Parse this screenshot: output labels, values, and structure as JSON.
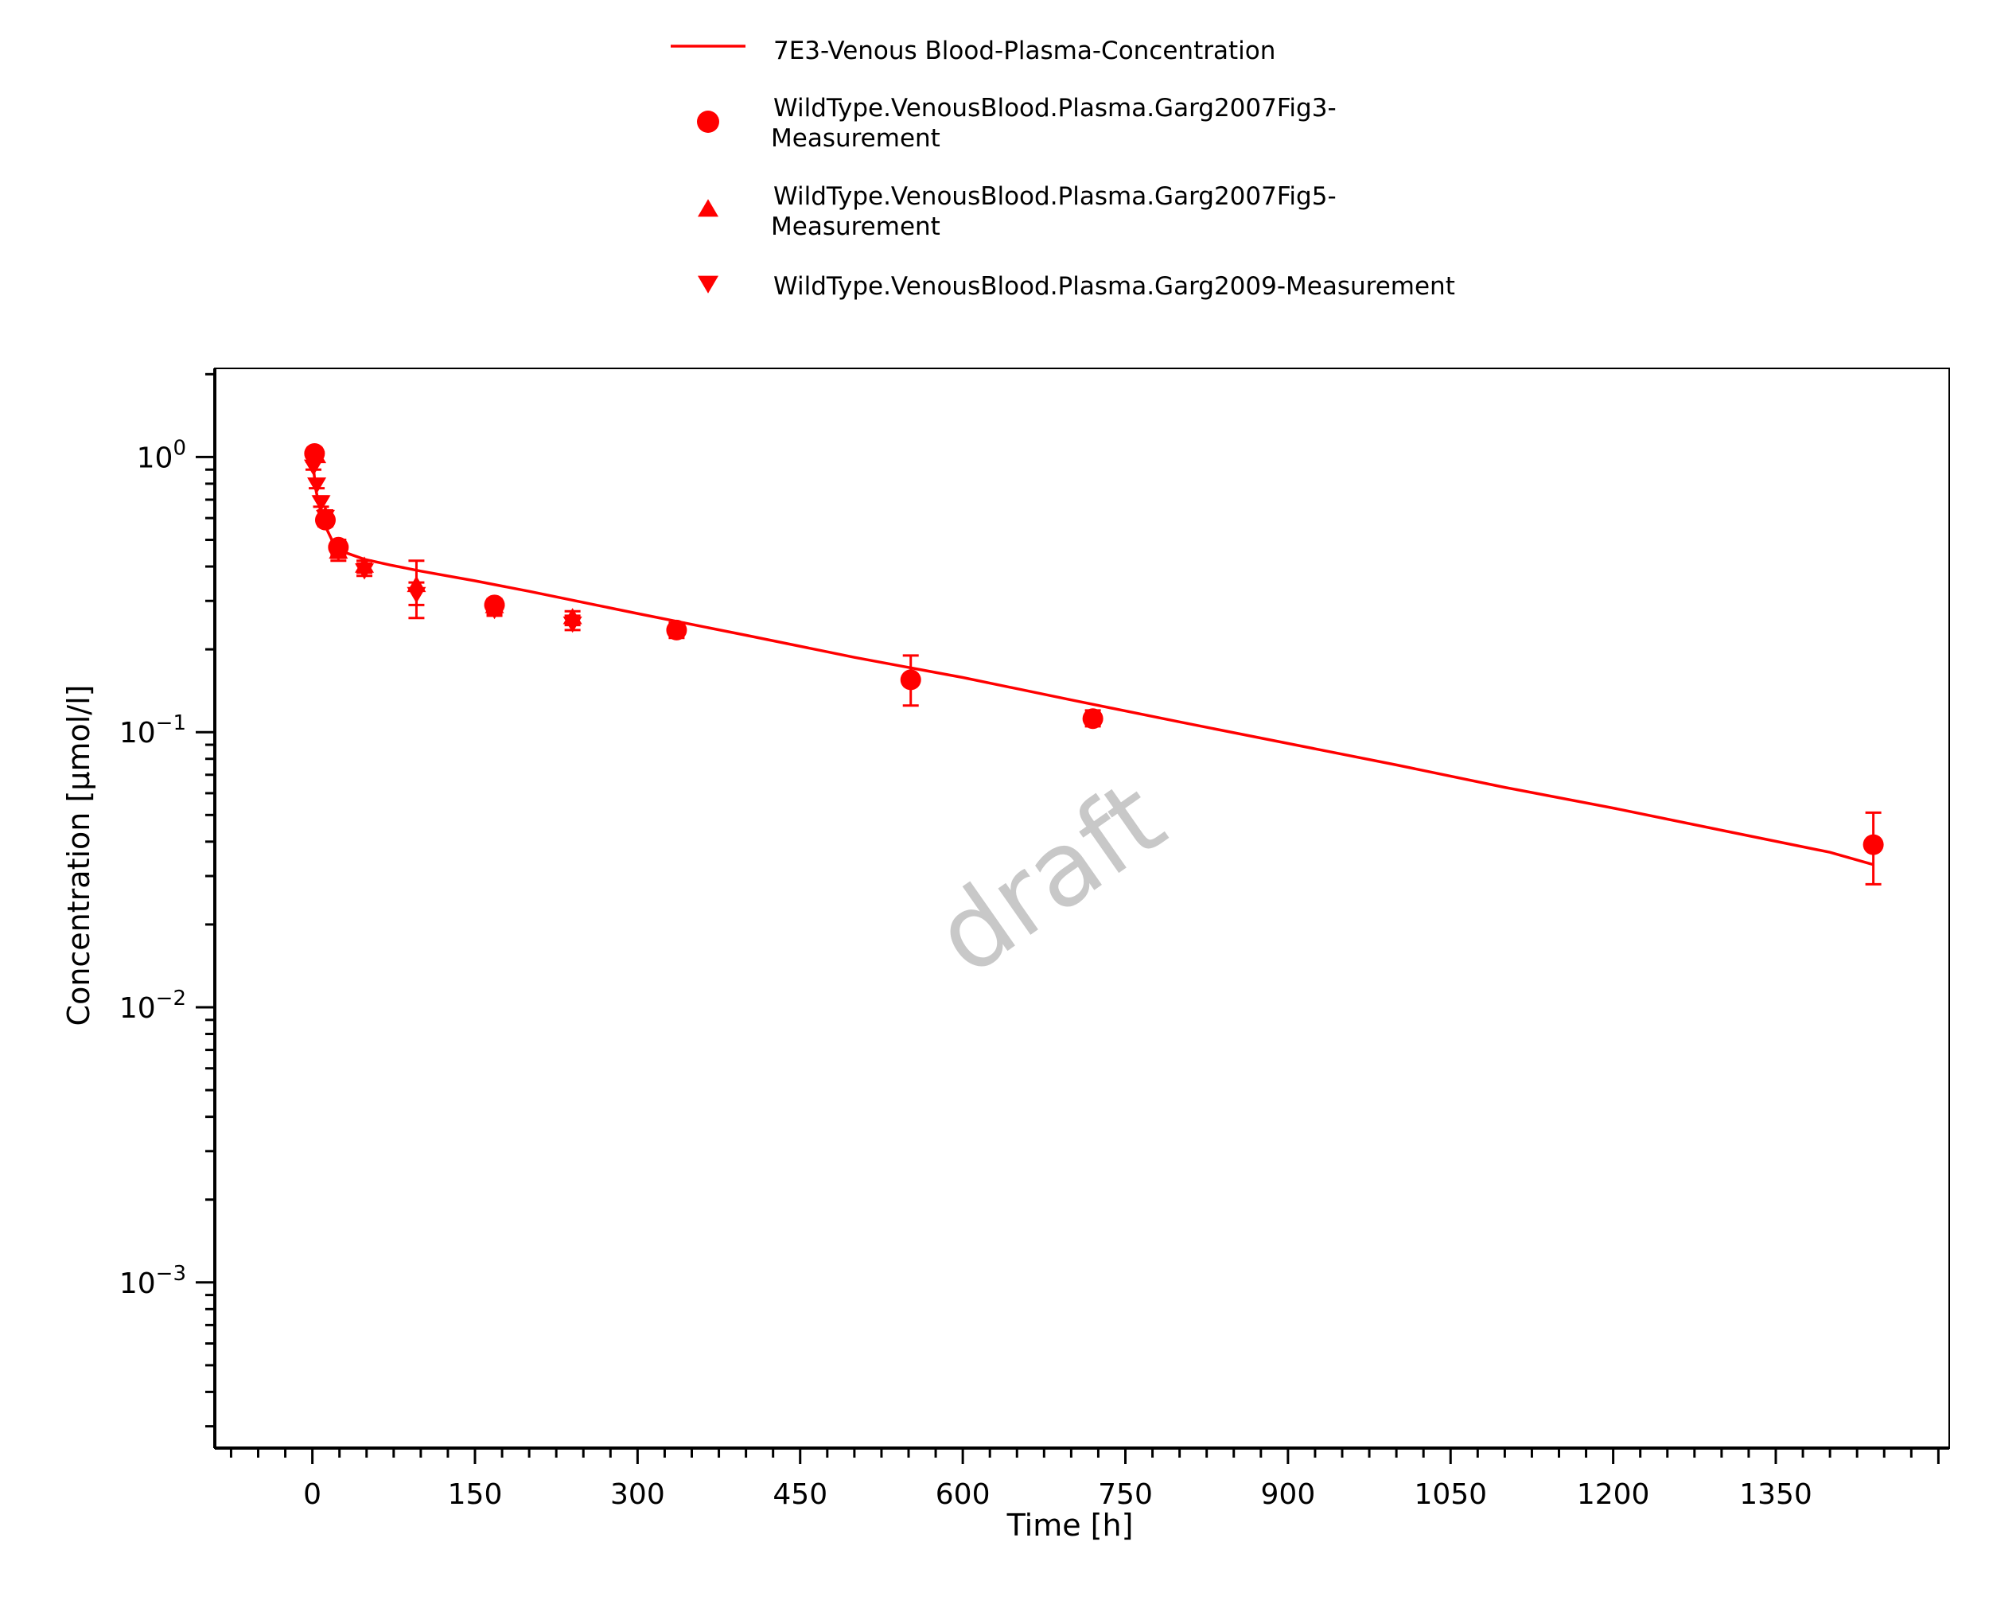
{
  "chart_data": {
    "type": "line",
    "watermark": "draft",
    "xlabel": "Time [h]",
    "ylabel": "Concentration [µmol/l]",
    "xlim": [
      -90,
      1510
    ],
    "ylim": [
      0.00025,
      2.1
    ],
    "yscale": "log",
    "xticks": [
      0,
      150,
      300,
      450,
      600,
      750,
      900,
      1050,
      1200,
      1350
    ],
    "xtick_labels": [
      "0",
      "150",
      "300",
      "450",
      "600",
      "750",
      "900",
      "1050",
      "1200",
      "1350"
    ],
    "yticks": [
      1,
      0.1,
      0.01,
      0.001
    ],
    "ytick_labels": [
      {
        "base": "10",
        "exp": "0"
      },
      {
        "base": "10",
        "exp": "−1"
      },
      {
        "base": "10",
        "exp": "−2"
      },
      {
        "base": "10",
        "exp": "−3"
      }
    ],
    "legend_position": "top-center",
    "color": "#ff0000",
    "series": [
      {
        "name": "7E3-Venous Blood-Plasma-Concentration",
        "kind": "line",
        "x": [
          0,
          3,
          6,
          12,
          18,
          24,
          30,
          48,
          72,
          100,
          150,
          200,
          300,
          400,
          500,
          600,
          700,
          800,
          900,
          1000,
          1100,
          1200,
          1300,
          1400,
          1440
        ],
        "y": [
          1.0,
          0.77,
          0.67,
          0.56,
          0.5,
          0.467,
          0.45,
          0.425,
          0.405,
          0.385,
          0.355,
          0.325,
          0.27,
          0.225,
          0.187,
          0.158,
          0.131,
          0.109,
          0.091,
          0.076,
          0.063,
          0.053,
          0.044,
          0.0366,
          0.033
        ]
      },
      {
        "name": "WildType.VenousBlood.Plasma.Garg2007Fig3-Measurement",
        "kind": "circle",
        "x": [
          2,
          12,
          24,
          168,
          336,
          552,
          720,
          1440
        ],
        "y": [
          1.03,
          0.59,
          0.47,
          0.29,
          0.235,
          0.155,
          0.112,
          0.039
        ],
        "err_low": [
          0.98,
          0.56,
          0.44,
          0.275,
          0.22,
          0.125,
          0.105,
          0.028
        ],
        "err_high": [
          1.08,
          0.62,
          0.5,
          0.305,
          0.25,
          0.19,
          0.12,
          0.051
        ]
      },
      {
        "name": "WildType.VenousBlood.Plasma.Garg2007Fig5-Measurement",
        "kind": "triangle-up",
        "x": [
          4,
          12,
          24,
          48,
          96,
          168,
          240
        ],
        "y": [
          1.0,
          0.61,
          0.45,
          0.4,
          0.34,
          0.285,
          0.26
        ],
        "err_low": [
          0.96,
          0.58,
          0.42,
          0.38,
          0.26,
          0.27,
          0.245
        ],
        "err_high": [
          1.04,
          0.64,
          0.48,
          0.42,
          0.42,
          0.3,
          0.275
        ]
      },
      {
        "name": "WildType.VenousBlood.Plasma.Garg2009-Measurement",
        "kind": "triangle-down",
        "x": [
          1,
          4,
          8,
          12,
          24,
          48,
          96,
          168,
          240
        ],
        "y": [
          0.93,
          0.8,
          0.69,
          0.61,
          0.46,
          0.39,
          0.32,
          0.28,
          0.25
        ],
        "err_low": [
          0.9,
          0.77,
          0.66,
          0.58,
          0.43,
          0.37,
          0.29,
          0.265,
          0.235
        ],
        "err_high": [
          0.96,
          0.83,
          0.72,
          0.64,
          0.49,
          0.41,
          0.35,
          0.295,
          0.265
        ]
      }
    ],
    "legend": {
      "entries": [
        {
          "symbol": "line",
          "lines": [
            "7E3-Venous Blood-Plasma-Concentration"
          ]
        },
        {
          "symbol": "circle",
          "lines": [
            "WildType.VenousBlood.Plasma.Garg2007Fig3-",
            "Measurement"
          ]
        },
        {
          "symbol": "triangle-up",
          "lines": [
            "WildType.VenousBlood.Plasma.Garg2007Fig5-",
            "Measurement"
          ]
        },
        {
          "symbol": "triangle-down",
          "lines": [
            "WildType.VenousBlood.Plasma.Garg2009-Measurement"
          ]
        }
      ]
    }
  }
}
